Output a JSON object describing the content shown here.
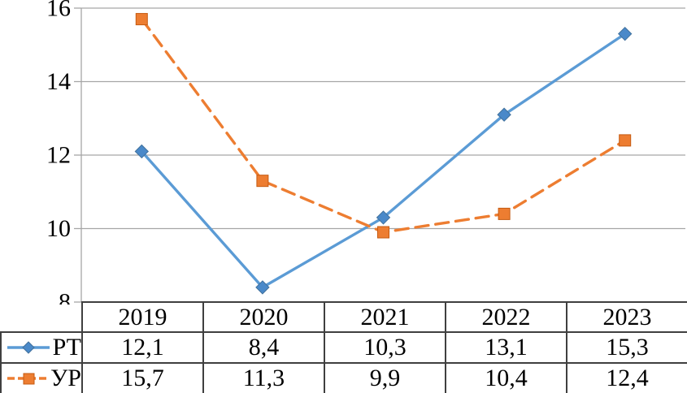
{
  "chart_data": {
    "type": "line",
    "x": [
      "2019",
      "2020",
      "2021",
      "2022",
      "2023"
    ],
    "series": [
      {
        "name": "РТ",
        "values": [
          12.1,
          8.4,
          10.3,
          13.1,
          15.3
        ],
        "color": "#5B9BD5",
        "marker_fill": "#4A89C9",
        "marker_stroke": "#41719C",
        "line_style": "solid",
        "marker": "diamond"
      },
      {
        "name": "УР",
        "values": [
          15.7,
          11.3,
          9.9,
          10.4,
          12.4
        ],
        "color": "#ED7D31",
        "marker_fill": "#ED7D31",
        "marker_stroke": "#C55A11",
        "line_style": "dashed",
        "marker": "square"
      }
    ],
    "title": "",
    "xlabel": "",
    "ylabel": "",
    "ylim": [
      8,
      16
    ],
    "yticks": [
      8,
      10,
      12,
      14,
      16
    ],
    "ytick_labels": [
      "8",
      "10",
      "12",
      "14",
      "16"
    ],
    "grid": true,
    "gridline_color": "#A6A6A6",
    "legend_position": "table-left"
  },
  "table": {
    "year_headers": [
      "2019",
      "2020",
      "2021",
      "2022",
      "2023"
    ],
    "rows": [
      {
        "label": "РТ",
        "values": [
          "12,1",
          "8,4",
          "10,3",
          "13,1",
          "15,3"
        ]
      },
      {
        "label": "УР",
        "values": [
          "15,7",
          "11,3",
          "9,9",
          "10,4",
          "12,4"
        ]
      }
    ],
    "border_color": "#3f3f3f"
  }
}
